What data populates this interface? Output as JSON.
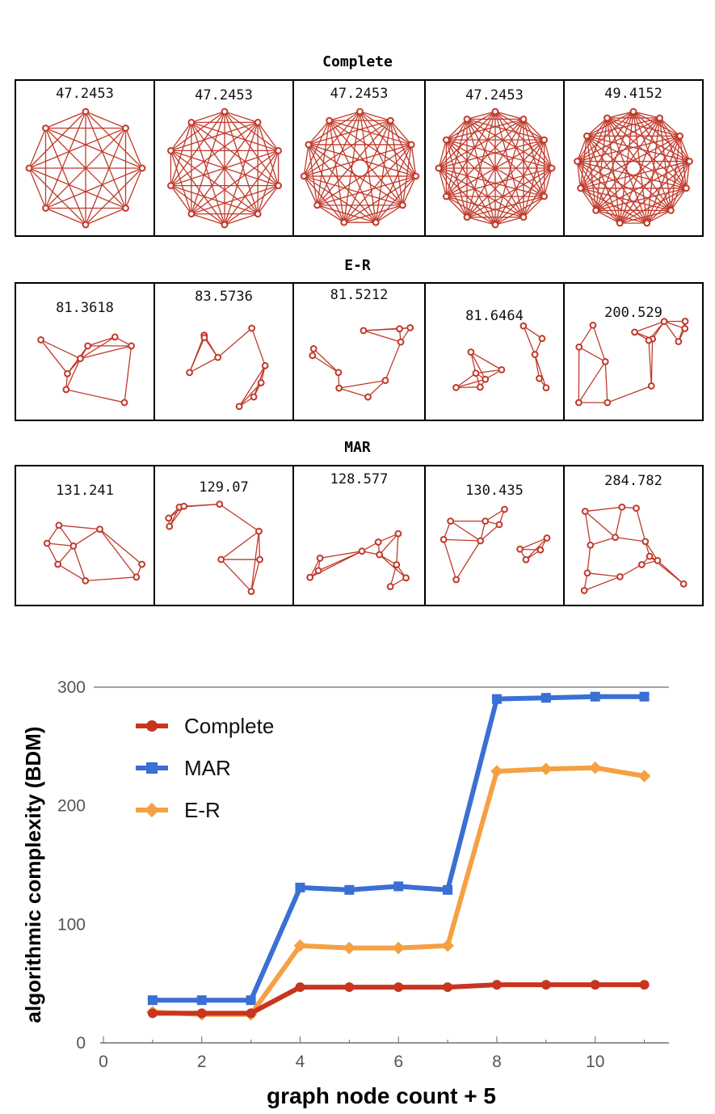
{
  "sections": [
    {
      "title": "Complete",
      "values": [
        "47.2453",
        "47.2453",
        "47.2453",
        "47.2453",
        "49.4152"
      ]
    },
    {
      "title": "E-R",
      "values": [
        "81.3618",
        "83.5736",
        "81.5212",
        "81.6464",
        "200.529"
      ]
    },
    {
      "title": "MAR",
      "values": [
        "131.241",
        "129.07",
        "128.577",
        "130.435",
        "284.782"
      ]
    }
  ],
  "colors": {
    "graph": "#c0392b",
    "complete": "#c8351f",
    "mar": "#3a6fd4",
    "er": "#f5a043"
  },
  "chart_data": {
    "type": "line",
    "xlabel": "graph node count + 5",
    "ylabel": "algorithmic complexity (BDM)",
    "xlim": [
      0,
      11.5
    ],
    "ylim": [
      0,
      300
    ],
    "xticks": [
      "0",
      "2",
      "4",
      "6",
      "8",
      "10"
    ],
    "yticks": [
      "0",
      "100",
      "200",
      "300"
    ],
    "x": [
      1,
      2,
      3,
      4,
      5,
      6,
      7,
      8,
      9,
      10,
      11
    ],
    "series": [
      {
        "name": "Complete",
        "marker": "circle",
        "color": "#c8351f",
        "values": [
          25,
          25,
          25,
          47,
          47,
          47,
          47,
          49,
          49,
          49,
          49
        ]
      },
      {
        "name": "MAR",
        "marker": "square",
        "color": "#3a6fd4",
        "values": [
          36,
          36,
          36,
          131,
          129,
          132,
          129,
          290,
          291,
          292,
          292
        ]
      },
      {
        "name": "E-R",
        "marker": "diamond",
        "color": "#f5a043",
        "values": [
          26,
          24,
          24,
          82,
          80,
          80,
          82,
          229,
          231,
          232,
          225
        ]
      }
    ],
    "legend": "top-left"
  }
}
